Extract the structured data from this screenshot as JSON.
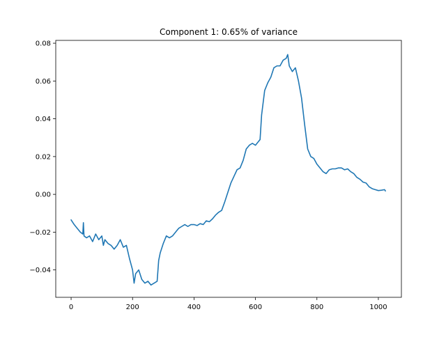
{
  "chart_data": {
    "type": "line",
    "title": "Component 1: 0.65% of variance",
    "xlabel": "",
    "ylabel": "",
    "xlim": [
      -50,
      1075
    ],
    "ylim": [
      -0.0545,
      0.0815
    ],
    "grid": false,
    "legend": "none",
    "xticks": [
      0,
      200,
      400,
      600,
      800,
      1000
    ],
    "xtick_labels": [
      "0",
      "200",
      "400",
      "600",
      "800",
      "1000"
    ],
    "yticks": [
      -0.04,
      -0.02,
      0.0,
      0.02,
      0.04,
      0.06,
      0.08
    ],
    "ytick_labels": [
      "−0.04",
      "−0.02",
      "0.00",
      "0.02",
      "0.04",
      "0.06",
      "0.08"
    ],
    "colors": {
      "line": "#1f77b4",
      "axes": "#000000",
      "background": "#ffffff"
    },
    "series": [
      {
        "name": "Component 1",
        "x": [
          0,
          10,
          20,
          30,
          38,
          40,
          42,
          50,
          60,
          70,
          80,
          90,
          100,
          105,
          110,
          120,
          130,
          140,
          150,
          160,
          170,
          180,
          190,
          200,
          205,
          210,
          220,
          230,
          240,
          250,
          260,
          270,
          280,
          285,
          290,
          300,
          310,
          320,
          330,
          340,
          350,
          360,
          370,
          380,
          390,
          400,
          410,
          420,
          430,
          440,
          450,
          460,
          470,
          480,
          490,
          500,
          510,
          520,
          530,
          540,
          550,
          560,
          570,
          580,
          590,
          600,
          610,
          615,
          620,
          630,
          640,
          650,
          660,
          670,
          680,
          690,
          700,
          705,
          710,
          720,
          730,
          740,
          750,
          760,
          770,
          780,
          790,
          800,
          810,
          820,
          830,
          840,
          850,
          860,
          870,
          880,
          890,
          900,
          910,
          920,
          930,
          940,
          950,
          960,
          970,
          980,
          990,
          1000,
          1010,
          1020,
          1023
        ],
        "y": [
          -0.0135,
          -0.016,
          -0.018,
          -0.02,
          -0.021,
          -0.015,
          -0.022,
          -0.023,
          -0.022,
          -0.025,
          -0.021,
          -0.024,
          -0.022,
          -0.027,
          -0.024,
          -0.026,
          -0.027,
          -0.029,
          -0.027,
          -0.024,
          -0.028,
          -0.027,
          -0.034,
          -0.04,
          -0.047,
          -0.042,
          -0.04,
          -0.045,
          -0.047,
          -0.046,
          -0.048,
          -0.047,
          -0.046,
          -0.035,
          -0.031,
          -0.026,
          -0.022,
          -0.023,
          -0.022,
          -0.02,
          -0.018,
          -0.017,
          -0.016,
          -0.017,
          -0.016,
          -0.016,
          -0.0165,
          -0.0155,
          -0.016,
          -0.014,
          -0.0145,
          -0.013,
          -0.011,
          -0.0095,
          -0.0085,
          -0.004,
          0.001,
          0.006,
          0.0095,
          0.013,
          0.014,
          0.018,
          0.024,
          0.026,
          0.027,
          0.026,
          0.028,
          0.029,
          0.042,
          0.055,
          0.059,
          0.062,
          0.067,
          0.068,
          0.068,
          0.071,
          0.072,
          0.074,
          0.068,
          0.065,
          0.067,
          0.06,
          0.051,
          0.037,
          0.024,
          0.02,
          0.019,
          0.016,
          0.014,
          0.012,
          0.011,
          0.013,
          0.0135,
          0.0135,
          0.014,
          0.014,
          0.013,
          0.0135,
          0.012,
          0.011,
          0.009,
          0.008,
          0.0065,
          0.006,
          0.004,
          0.003,
          0.0025,
          0.002,
          0.0022,
          0.0025,
          0.0018
        ]
      }
    ]
  }
}
